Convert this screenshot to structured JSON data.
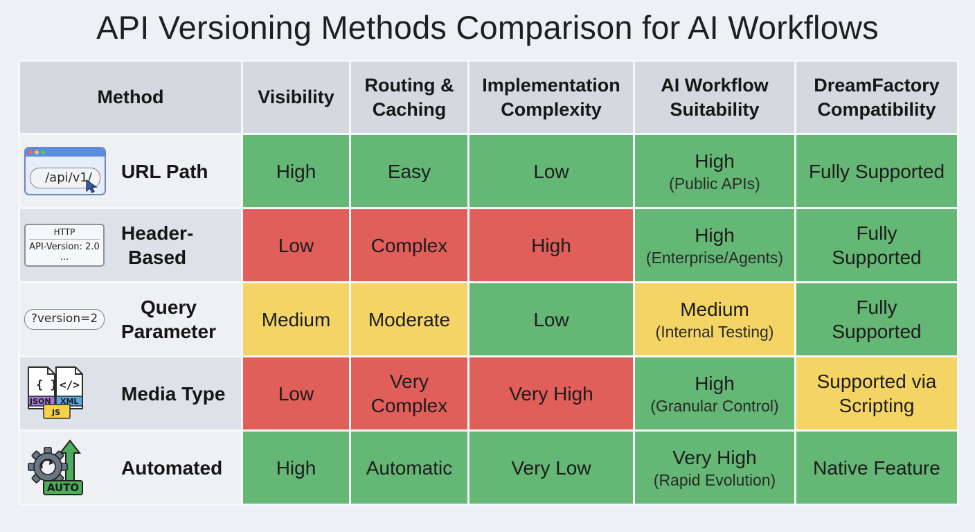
{
  "title": "API Versioning Methods Comparison for AI Workflows",
  "headers": {
    "method": "Method",
    "visibility": "Visibility",
    "routing": [
      "Routing &",
      "Caching"
    ],
    "implementation": [
      "Implementation",
      "Complexity"
    ],
    "suitability": [
      "AI Workflow",
      "Suitability"
    ],
    "compatibility": [
      "DreamFactory",
      "Compatibility"
    ]
  },
  "rows": [
    {
      "method": "URL Path",
      "icon": "browser-url-icon",
      "icon_text": "/api/v1/",
      "visibility": {
        "text": "High",
        "status": "green"
      },
      "routing": {
        "lines": [
          "Easy"
        ],
        "status": "green"
      },
      "implementation": {
        "lines": [
          "Low"
        ],
        "status": "green"
      },
      "suitability": {
        "main": "High",
        "sub": "(Public APIs)",
        "status": "green"
      },
      "compatibility": {
        "lines": [
          "Fully Supported"
        ],
        "status": "green"
      }
    },
    {
      "method": "Header-",
      "method2": "Based",
      "icon": "http-header-icon",
      "icon_text": [
        "HTTP",
        "API-Version: 2.0",
        "..."
      ],
      "visibility": {
        "text": "Low",
        "status": "red"
      },
      "routing": {
        "lines": [
          "Complex"
        ],
        "status": "red"
      },
      "implementation": {
        "lines": [
          "High"
        ],
        "status": "red"
      },
      "suitability": {
        "main": "High",
        "sub": "(Enterprise/Agents)",
        "status": "green"
      },
      "compatibility": {
        "lines": [
          "Fully",
          "Supported"
        ],
        "status": "green"
      }
    },
    {
      "method": "Query",
      "method2": "Parameter",
      "icon": "query-param-icon",
      "icon_text": "?version=2",
      "visibility": {
        "text": "Medium",
        "status": "yellow"
      },
      "routing": {
        "lines": [
          "Moderate"
        ],
        "status": "yellow"
      },
      "implementation": {
        "lines": [
          "Low"
        ],
        "status": "green"
      },
      "suitability": {
        "main": "Medium",
        "sub": "(Internal Testing)",
        "status": "yellow"
      },
      "compatibility": {
        "lines": [
          "Fully",
          "Supported"
        ],
        "status": "green"
      }
    },
    {
      "method": "Media Type",
      "icon": "media-type-files-icon",
      "icon_text": [
        "{ }",
        "</>",
        "JSON",
        "XML",
        "JS"
      ],
      "visibility": {
        "text": "Low",
        "status": "red"
      },
      "routing": {
        "lines": [
          "Very",
          "Complex"
        ],
        "status": "red"
      },
      "implementation": {
        "lines": [
          "Very High"
        ],
        "status": "red"
      },
      "suitability": {
        "main": "High",
        "sub": "(Granular Control)",
        "status": "green"
      },
      "compatibility": {
        "lines": [
          "Supported via",
          "Scripting"
        ],
        "status": "yellow"
      }
    },
    {
      "method": "Automated",
      "icon": "auto-gear-icon",
      "icon_text": "AUTO",
      "visibility": {
        "text": "High",
        "status": "green"
      },
      "routing": {
        "lines": [
          "Automatic"
        ],
        "status": "green"
      },
      "implementation": {
        "lines": [
          "Very Low"
        ],
        "status": "green"
      },
      "suitability": {
        "main": "Very High",
        "sub": "(Rapid Evolution)",
        "status": "green"
      },
      "compatibility": {
        "lines": [
          "Native Feature"
        ],
        "status": "green"
      }
    }
  ],
  "colors": {
    "green": "#64b774",
    "red": "#e05f5a",
    "yellow": "#f5d466",
    "header_bg": "#d4d9e0"
  }
}
